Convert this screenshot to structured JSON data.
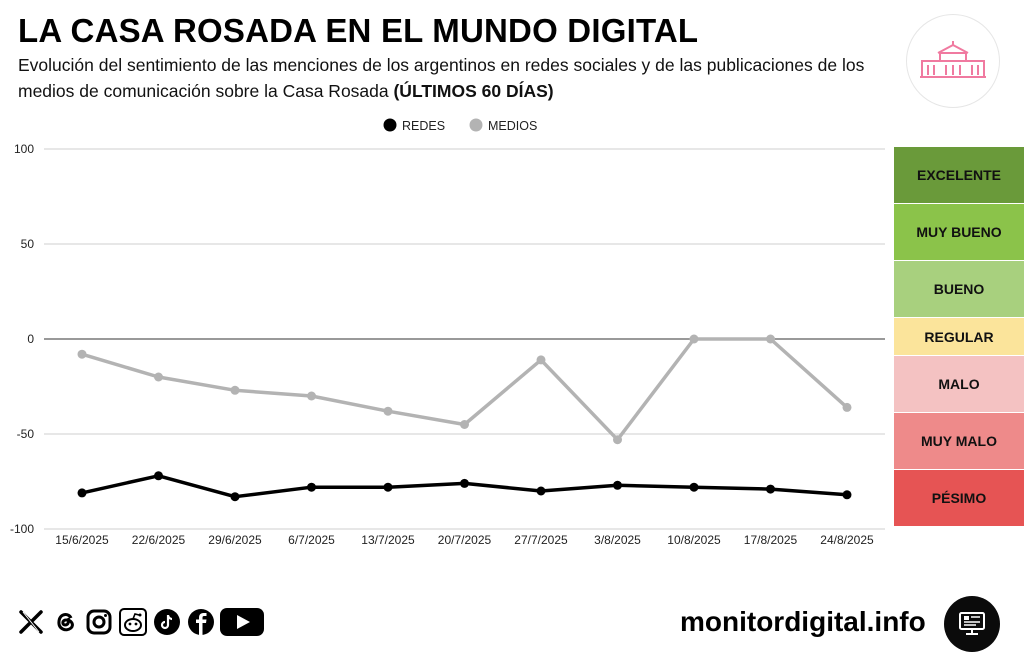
{
  "header": {
    "title": "LA CASA ROSADA EN EL MUNDO DIGITAL",
    "subtitle_regular": "Evolución del sentimiento de las menciones de los argentinos en redes sociales y de las publicaciones de los medios de comunicación sobre la Casa Rosada ",
    "subtitle_bold": "(ÚLTIMOS 60 DÍAS)",
    "logo_icon": "casa-rosada-building-icon"
  },
  "chart_data": {
    "type": "line",
    "categories": [
      "15/6/2025",
      "22/6/2025",
      "29/6/2025",
      "6/7/2025",
      "13/7/2025",
      "20/7/2025",
      "27/7/2025",
      "3/8/2025",
      "10/8/2025",
      "17/8/2025",
      "24/8/2025"
    ],
    "series": [
      {
        "name": "REDES",
        "color": "#000000",
        "values": [
          -81,
          -72,
          -83,
          -78,
          -78,
          -76,
          -80,
          -77,
          -78,
          -79,
          -82
        ]
      },
      {
        "name": "MEDIOS",
        "color": "#b3b3b3",
        "values": [
          -8,
          -20,
          -27,
          -30,
          -38,
          -45,
          -11,
          -53,
          0,
          0,
          -36
        ]
      }
    ],
    "ylim": [
      -100,
      100
    ],
    "yticks": [
      100,
      50,
      0,
      -50,
      -100
    ],
    "legend_position": "top-center",
    "grid": true
  },
  "scale": [
    {
      "label": "EXCELENTE",
      "color": "#6a9a3a",
      "from": 70,
      "to": 100
    },
    {
      "label": "MUY BUENO",
      "color": "#8bc34a",
      "from": 40,
      "to": 70
    },
    {
      "label": "BUENO",
      "color": "#a8d07e",
      "from": 10,
      "to": 40
    },
    {
      "label": "REGULAR",
      "color": "#fbe49b",
      "from": -10,
      "to": 10
    },
    {
      "label": "MALO",
      "color": "#f4c2c2",
      "from": -40,
      "to": -10
    },
    {
      "label": "MUY MALO",
      "color": "#ee8a8a",
      "from": -70,
      "to": -40
    },
    {
      "label": "PÉSIMO",
      "color": "#e65454",
      "from": -100,
      "to": -70
    }
  ],
  "footer": {
    "website": "monitordigital.info",
    "social_icons": [
      "x-icon",
      "threads-icon",
      "instagram-icon",
      "reddit-icon",
      "tiktok-icon",
      "facebook-icon",
      "youtube-icon"
    ],
    "monitor_icon": "monitor-icon"
  }
}
